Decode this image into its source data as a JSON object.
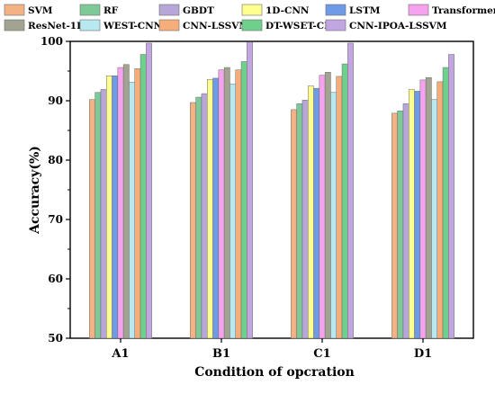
{
  "chart_data": {
    "type": "bar",
    "title": "",
    "xlabel": "Condition of opcration",
    "ylabel": "Accuracy(%)",
    "ylim": [
      50,
      100
    ],
    "yticks": [
      50,
      60,
      70,
      80,
      90,
      100
    ],
    "categories": [
      "A1",
      "B1",
      "C1",
      "D1"
    ],
    "legend_position": "top",
    "series": [
      {
        "name": "SVM",
        "color": "#f4b183",
        "values": [
          90.2,
          89.7,
          88.5,
          87.9
        ]
      },
      {
        "name": "RF",
        "color": "#7dc998",
        "values": [
          91.4,
          90.6,
          89.5,
          88.3
        ]
      },
      {
        "name": "GBDT",
        "color": "#b7a7d8",
        "values": [
          91.9,
          91.2,
          90.1,
          89.5
        ]
      },
      {
        "name": "1D-CNN",
        "color": "#ffff8f",
        "values": [
          94.2,
          93.6,
          92.5,
          91.9
        ]
      },
      {
        "name": "LSTM",
        "color": "#6f9be6",
        "values": [
          94.2,
          93.8,
          92.1,
          91.6
        ]
      },
      {
        "name": "Transformer",
        "color": "#f5a3ef",
        "values": [
          95.6,
          95.2,
          94.3,
          93.5
        ]
      },
      {
        "name": "ResNet-1D",
        "color": "#a3a391",
        "values": [
          96.1,
          95.6,
          94.8,
          93.9
        ]
      },
      {
        "name": "WEST-CNN",
        "color": "#b8e8f0",
        "values": [
          93.1,
          92.8,
          91.4,
          90.2
        ]
      },
      {
        "name": "CNN-LSSVM",
        "color": "#f5ad7a",
        "values": [
          95.4,
          95.2,
          94.1,
          93.2
        ]
      },
      {
        "name": "DT-WSET-CNN",
        "color": "#6fd08c",
        "values": [
          97.8,
          96.6,
          96.2,
          95.6
        ]
      },
      {
        "name": "CNN-IPOA-LSSVM",
        "color": "#c2a6e2",
        "values": [
          99.7,
          99.9,
          99.7,
          97.8
        ]
      }
    ]
  }
}
